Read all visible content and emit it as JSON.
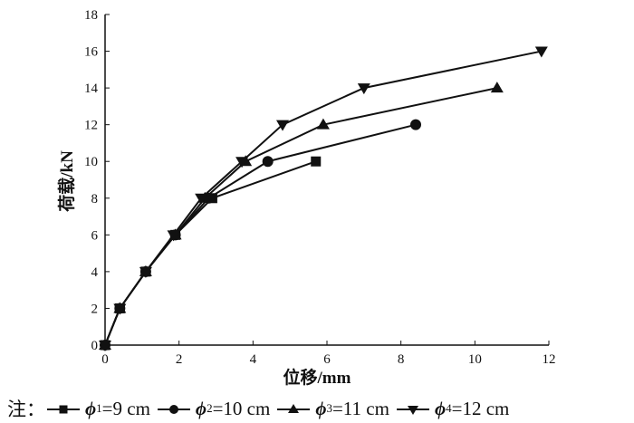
{
  "chart_data": {
    "type": "line",
    "xlabel": "位移/mm",
    "ylabel": "荷载/kN",
    "xlim": [
      0,
      12
    ],
    "ylim": [
      0,
      18
    ],
    "xticks": [
      0,
      2,
      4,
      6,
      8,
      10,
      12
    ],
    "yticks": [
      0,
      2,
      4,
      6,
      8,
      10,
      12,
      14,
      16,
      18
    ],
    "grid": false,
    "series": [
      {
        "name": "ϕ1=9 cm",
        "marker": "square",
        "x": [
          0,
          0.4,
          1.1,
          1.9,
          2.9,
          5.7
        ],
        "y": [
          0,
          2,
          4,
          6,
          8,
          10
        ]
      },
      {
        "name": "ϕ2=10 cm",
        "marker": "circle",
        "x": [
          0,
          0.4,
          1.1,
          1.9,
          2.8,
          4.4,
          8.4
        ],
        "y": [
          0,
          2,
          4,
          6,
          8,
          10,
          12
        ]
      },
      {
        "name": "ϕ3=11 cm",
        "marker": "triangle-up",
        "x": [
          0,
          0.4,
          1.1,
          1.9,
          2.7,
          3.8,
          5.9,
          10.6
        ],
        "y": [
          0,
          2,
          4,
          6,
          8,
          10,
          12,
          14
        ]
      },
      {
        "name": "ϕ4=12 cm",
        "marker": "triangle-down",
        "x": [
          0,
          0.4,
          1.1,
          1.85,
          2.6,
          3.7,
          4.8,
          7.0,
          11.8
        ],
        "y": [
          0,
          2,
          4,
          6,
          8,
          10,
          12,
          14,
          16
        ]
      }
    ]
  },
  "legend": {
    "prefix": "注：",
    "items": [
      {
        "symbol": "ϕ",
        "sub": "1",
        "value": "=9 cm"
      },
      {
        "symbol": "ϕ",
        "sub": "2",
        "value": "=10 cm"
      },
      {
        "symbol": "ϕ",
        "sub": "3",
        "value": "=11 cm"
      },
      {
        "symbol": "ϕ",
        "sub": "4",
        "value": "=12 cm"
      }
    ]
  }
}
